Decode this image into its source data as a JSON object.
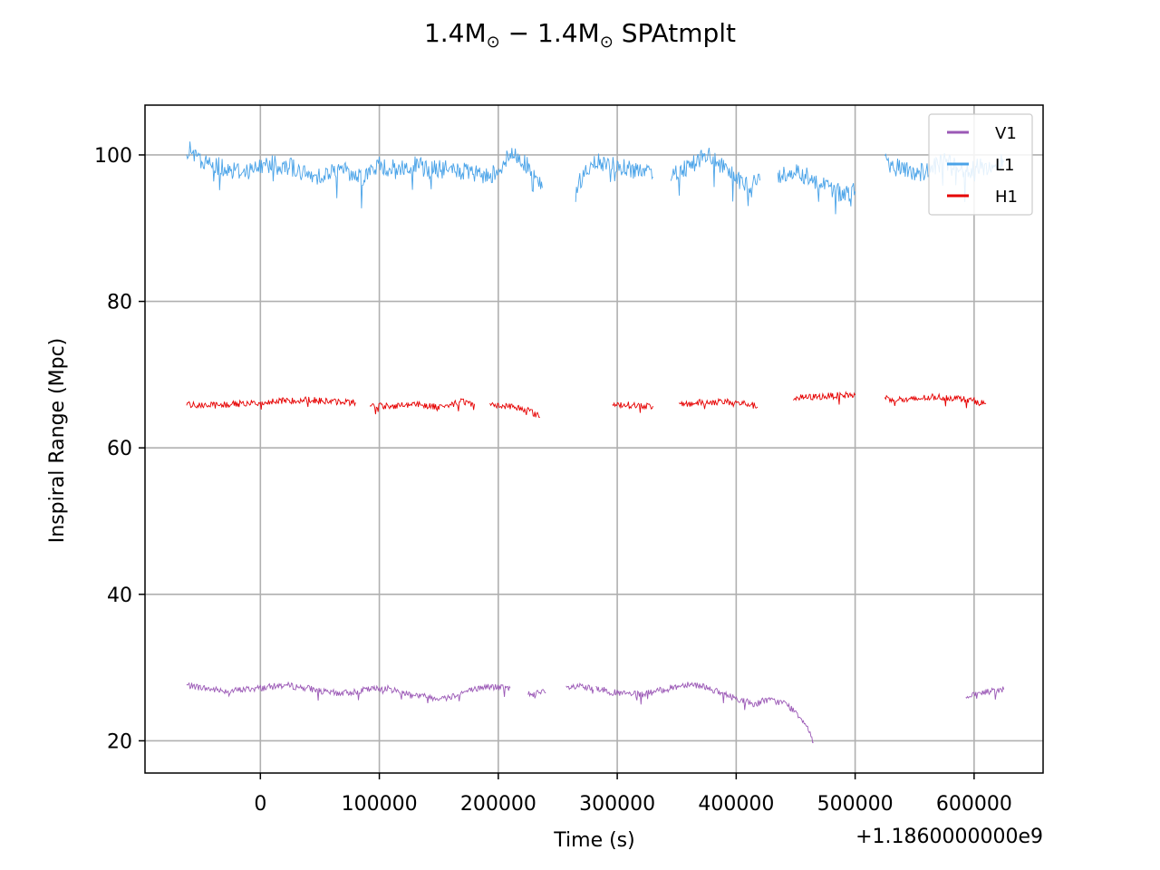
{
  "chart_data": {
    "type": "line",
    "title_main": "1.4M",
    "title_sub": "⊙",
    "title_mid": " − 1.4M",
    "title_tail": " SPAtmplt",
    "xlabel": "Time (s)",
    "ylabel": "Inspiral Range (Mpc)",
    "x_offset_label": "+1.1860000000e9",
    "xlim": [
      -97000,
      658000
    ],
    "ylim": [
      15.6,
      106.8
    ],
    "xticks": [
      0,
      100000,
      200000,
      300000,
      400000,
      500000,
      600000
    ],
    "xtick_labels": [
      "0",
      "100000",
      "200000",
      "300000",
      "400000",
      "500000",
      "600000"
    ],
    "yticks": [
      20,
      40,
      60,
      80,
      100
    ],
    "ytick_labels": [
      "20",
      "40",
      "60",
      "80",
      "100"
    ],
    "grid": true,
    "legend_position": "top-right",
    "series": [
      {
        "name": "V1",
        "color": "#9b59b6",
        "segments": [
          [
            [
              -62000,
              27.6
            ],
            [
              -40000,
              27.0
            ],
            [
              -25000,
              26.8
            ],
            [
              -15000,
              27.0
            ],
            [
              0,
              27.2
            ],
            [
              20000,
              27.6
            ],
            [
              40000,
              27.2
            ],
            [
              55000,
              26.6
            ],
            [
              70000,
              26.5
            ],
            [
              90000,
              27.0
            ],
            [
              105000,
              27.2
            ],
            [
              120000,
              26.6
            ],
            [
              140000,
              26.0
            ],
            [
              155000,
              25.8
            ],
            [
              170000,
              26.6
            ],
            [
              190000,
              27.4
            ],
            [
              210000,
              27.2
            ]
          ],
          [
            [
              225000,
              26.4
            ],
            [
              240000,
              26.6
            ]
          ],
          [
            [
              257000,
              27.2
            ],
            [
              270000,
              27.4
            ],
            [
              280000,
              27.0
            ]
          ],
          [
            [
              282000,
              27.2
            ],
            [
              300000,
              26.5
            ],
            [
              320000,
              26.3
            ],
            [
              340000,
              27.0
            ],
            [
              360000,
              27.8
            ],
            [
              375000,
              27.4
            ],
            [
              385000,
              26.6
            ],
            [
              400000,
              25.8
            ],
            [
              415000,
              25.0
            ],
            [
              425000,
              25.6
            ],
            [
              440000,
              25.2
            ],
            [
              450000,
              24.0
            ],
            [
              460000,
              22.0
            ],
            [
              465000,
              19.8
            ]
          ],
          [
            [
              593000,
              25.8
            ],
            [
              605000,
              26.5
            ],
            [
              615000,
              26.8
            ],
            [
              625000,
              27.0
            ]
          ]
        ]
      },
      {
        "name": "L1",
        "color": "#4aa3e8",
        "segments": [
          [
            [
              -62000,
              101.0
            ],
            [
              -50000,
              99.0
            ],
            [
              -35000,
              98.5
            ],
            [
              -20000,
              97.8
            ],
            [
              -5000,
              98.0
            ],
            [
              10000,
              99.0
            ],
            [
              25000,
              98.5
            ],
            [
              40000,
              97.0
            ],
            [
              55000,
              97.5
            ],
            [
              70000,
              98.0
            ],
            [
              85000,
              97.0
            ],
            [
              100000,
              98.5
            ],
            [
              115000,
              98.0
            ],
            [
              130000,
              98.5
            ],
            [
              145000,
              98.0
            ],
            [
              160000,
              98.0
            ],
            [
              175000,
              97.5
            ],
            [
              190000,
              97.0
            ],
            [
              200000,
              98.0
            ],
            [
              210000,
              100.0
            ],
            [
              220000,
              99.5
            ],
            [
              230000,
              97.0
            ],
            [
              237000,
              95.5
            ]
          ],
          [
            [
              265000,
              95.5
            ],
            [
              275000,
              98.0
            ],
            [
              285000,
              99.0
            ],
            [
              300000,
              98.5
            ],
            [
              315000,
              98.0
            ],
            [
              330000,
              97.0
            ]
          ],
          [
            [
              345000,
              97.5
            ],
            [
              360000,
              98.5
            ],
            [
              375000,
              100.0
            ],
            [
              390000,
              98.0
            ],
            [
              405000,
              96.0
            ],
            [
              420000,
              96.5
            ]
          ],
          [
            [
              435000,
              97.0
            ],
            [
              450000,
              98.0
            ],
            [
              460000,
              97.0
            ],
            [
              475000,
              96.0
            ],
            [
              490000,
              94.5
            ],
            [
              500000,
              95.0
            ]
          ],
          [
            [
              525000,
              99.0
            ],
            [
              540000,
              98.0
            ],
            [
              555000,
              97.5
            ],
            [
              575000,
              99.0
            ],
            [
              595000,
              98.0
            ],
            [
              615000,
              98.5
            ],
            [
              625000,
              99.0
            ]
          ]
        ]
      },
      {
        "name": "H1",
        "color": "#e60000",
        "segments": [
          [
            [
              -62000,
              66.0
            ],
            [
              -40000,
              65.8
            ],
            [
              -20000,
              66.0
            ],
            [
              0,
              66.2
            ],
            [
              20000,
              66.4
            ],
            [
              40000,
              66.6
            ],
            [
              60000,
              66.3
            ],
            [
              80000,
              66.2
            ]
          ],
          [
            [
              92000,
              65.8
            ],
            [
              110000,
              65.7
            ],
            [
              130000,
              66.0
            ],
            [
              150000,
              65.6
            ],
            [
              170000,
              66.3
            ],
            [
              180000,
              66.0
            ]
          ],
          [
            [
              193000,
              65.8
            ],
            [
              210000,
              65.7
            ],
            [
              225000,
              65.2
            ],
            [
              235000,
              64.2
            ]
          ],
          [
            [
              296000,
              66.0
            ],
            [
              315000,
              65.8
            ],
            [
              330000,
              65.7
            ]
          ],
          [
            [
              352000,
              65.8
            ],
            [
              370000,
              66.2
            ],
            [
              390000,
              66.3
            ],
            [
              410000,
              66.0
            ],
            [
              418000,
              65.6
            ]
          ],
          [
            [
              448000,
              66.8
            ],
            [
              470000,
              67.0
            ],
            [
              490000,
              67.2
            ],
            [
              500000,
              67.2
            ]
          ],
          [
            [
              525000,
              66.8
            ],
            [
              545000,
              66.5
            ],
            [
              565000,
              67.0
            ],
            [
              585000,
              66.8
            ],
            [
              600000,
              66.4
            ],
            [
              610000,
              66.0
            ]
          ]
        ]
      }
    ]
  }
}
